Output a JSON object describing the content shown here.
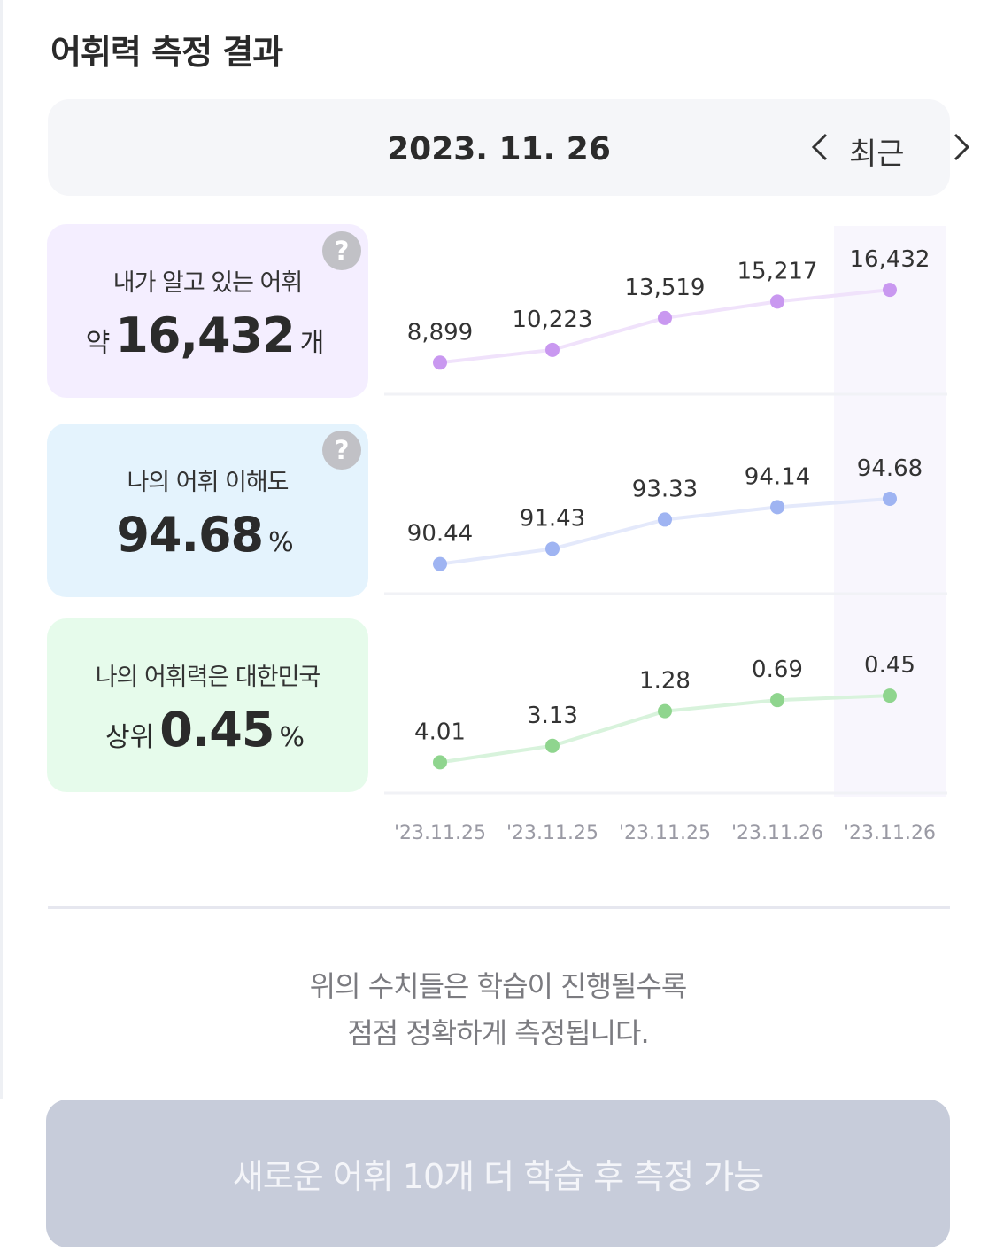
{
  "header": {
    "title": "어휘력 측정 결과"
  },
  "datebar": {
    "date": "2023. 11. 26",
    "label": "최근"
  },
  "cards": {
    "known": {
      "label": "내가 알고 있는 어휘",
      "prefix": "약",
      "value": "16,432",
      "unit": "개"
    },
    "comprehension": {
      "label": "나의 어휘 이해도",
      "value": "94.68",
      "unit": "%"
    },
    "rank": {
      "label": "나의 어휘력은 대한민국",
      "prefix": "상위",
      "value": "0.45",
      "unit": "%"
    }
  },
  "help_icon_text": "?",
  "chart_data": {
    "type": "line",
    "x": [
      "'23.11.25",
      "'23.11.25",
      "'23.11.25",
      "'23.11.26",
      "'23.11.26"
    ],
    "highlight_index": 4,
    "series": [
      {
        "values": [
          8899,
          10223,
          13519,
          15217,
          16432
        ],
        "labels": [
          "8,899",
          "10,223",
          "13,519",
          "15,217",
          "16,432"
        ],
        "color": "#c998f0",
        "line_color": "#f0e2fb",
        "ylim": [
          7000,
          18000
        ]
      },
      {
        "values": [
          90.44,
          91.43,
          93.33,
          94.14,
          94.68
        ],
        "labels": [
          "90.44",
          "91.43",
          "93.33",
          "94.14",
          "94.68"
        ],
        "color": "#9fb4f2",
        "line_color": "#e4e9fb",
        "ylim": [
          89.5,
          96
        ]
      },
      {
        "values": [
          4.01,
          3.13,
          1.28,
          0.69,
          0.45
        ],
        "labels": [
          "4.01",
          "3.13",
          "1.28",
          "0.69",
          "0.45"
        ],
        "color": "#8fd58e",
        "line_color": "#d8f3dc",
        "ylim": [
          4.7,
          -0.5
        ],
        "inverted": true
      }
    ]
  },
  "note": {
    "line1": "위의 수치들은 학습이 진행될수록",
    "line2": "점점 정확하게 측정됩니다."
  },
  "cta": {
    "label": "새로운 어휘 10개 더 학습 후 측정 가능"
  }
}
